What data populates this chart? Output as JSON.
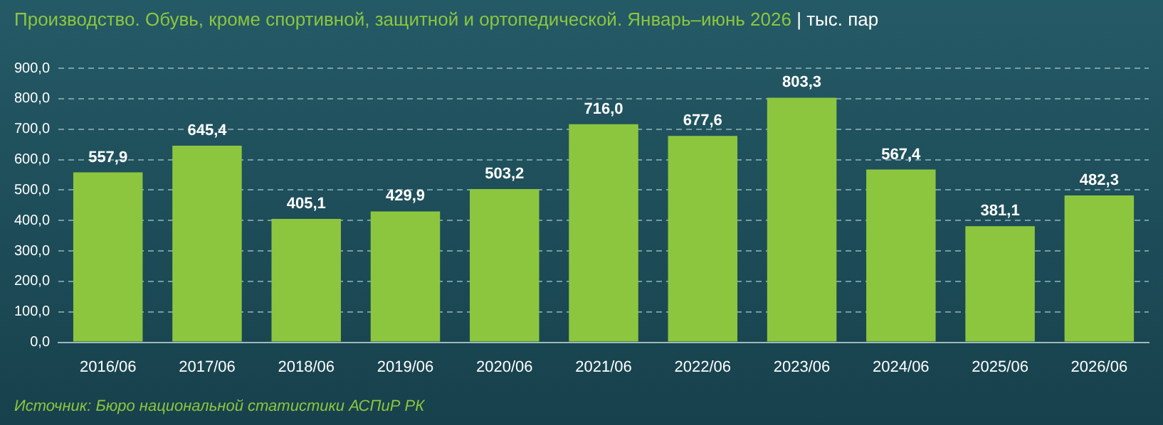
{
  "chart_data": {
    "type": "bar",
    "title": "Производство. Обувь, кроме спортивной, защитной и ортопедической. Январь–июнь 2026",
    "subtitle": "| тыс. пар",
    "categories": [
      "2016/06",
      "2017/06",
      "2018/06",
      "2019/06",
      "2020/06",
      "2021/06",
      "2022/06",
      "2023/06",
      "2024/06",
      "2025/06",
      "2026/06"
    ],
    "values": [
      557.9,
      645.4,
      405.1,
      429.9,
      503.2,
      716.0,
      677.6,
      803.3,
      567.4,
      381.1,
      482.3
    ],
    "value_labels": [
      "557,9",
      "645,4",
      "405,1",
      "429,9",
      "503,2",
      "716,0",
      "677,6",
      "803,3",
      "567,4",
      "381,1",
      "482,3"
    ],
    "color": "#8cc63f",
    "ylim": [
      0,
      900
    ],
    "yticks": [
      {
        "value": 0,
        "label": "0,0"
      },
      {
        "value": 100,
        "label": "100,0"
      },
      {
        "value": 200,
        "label": "200,0"
      },
      {
        "value": 300,
        "label": "300,0"
      },
      {
        "value": 400,
        "label": "400,0"
      },
      {
        "value": 500,
        "label": "500,0"
      },
      {
        "value": 600,
        "label": "600,0"
      },
      {
        "value": 700,
        "label": "700,0"
      },
      {
        "value": 800,
        "label": "800,0"
      },
      {
        "value": 900,
        "label": "900,0"
      }
    ],
    "grid": "y",
    "legend": false,
    "annotations": [
      "Источник: Бюро национальной статистики АСПиР РК"
    ]
  }
}
